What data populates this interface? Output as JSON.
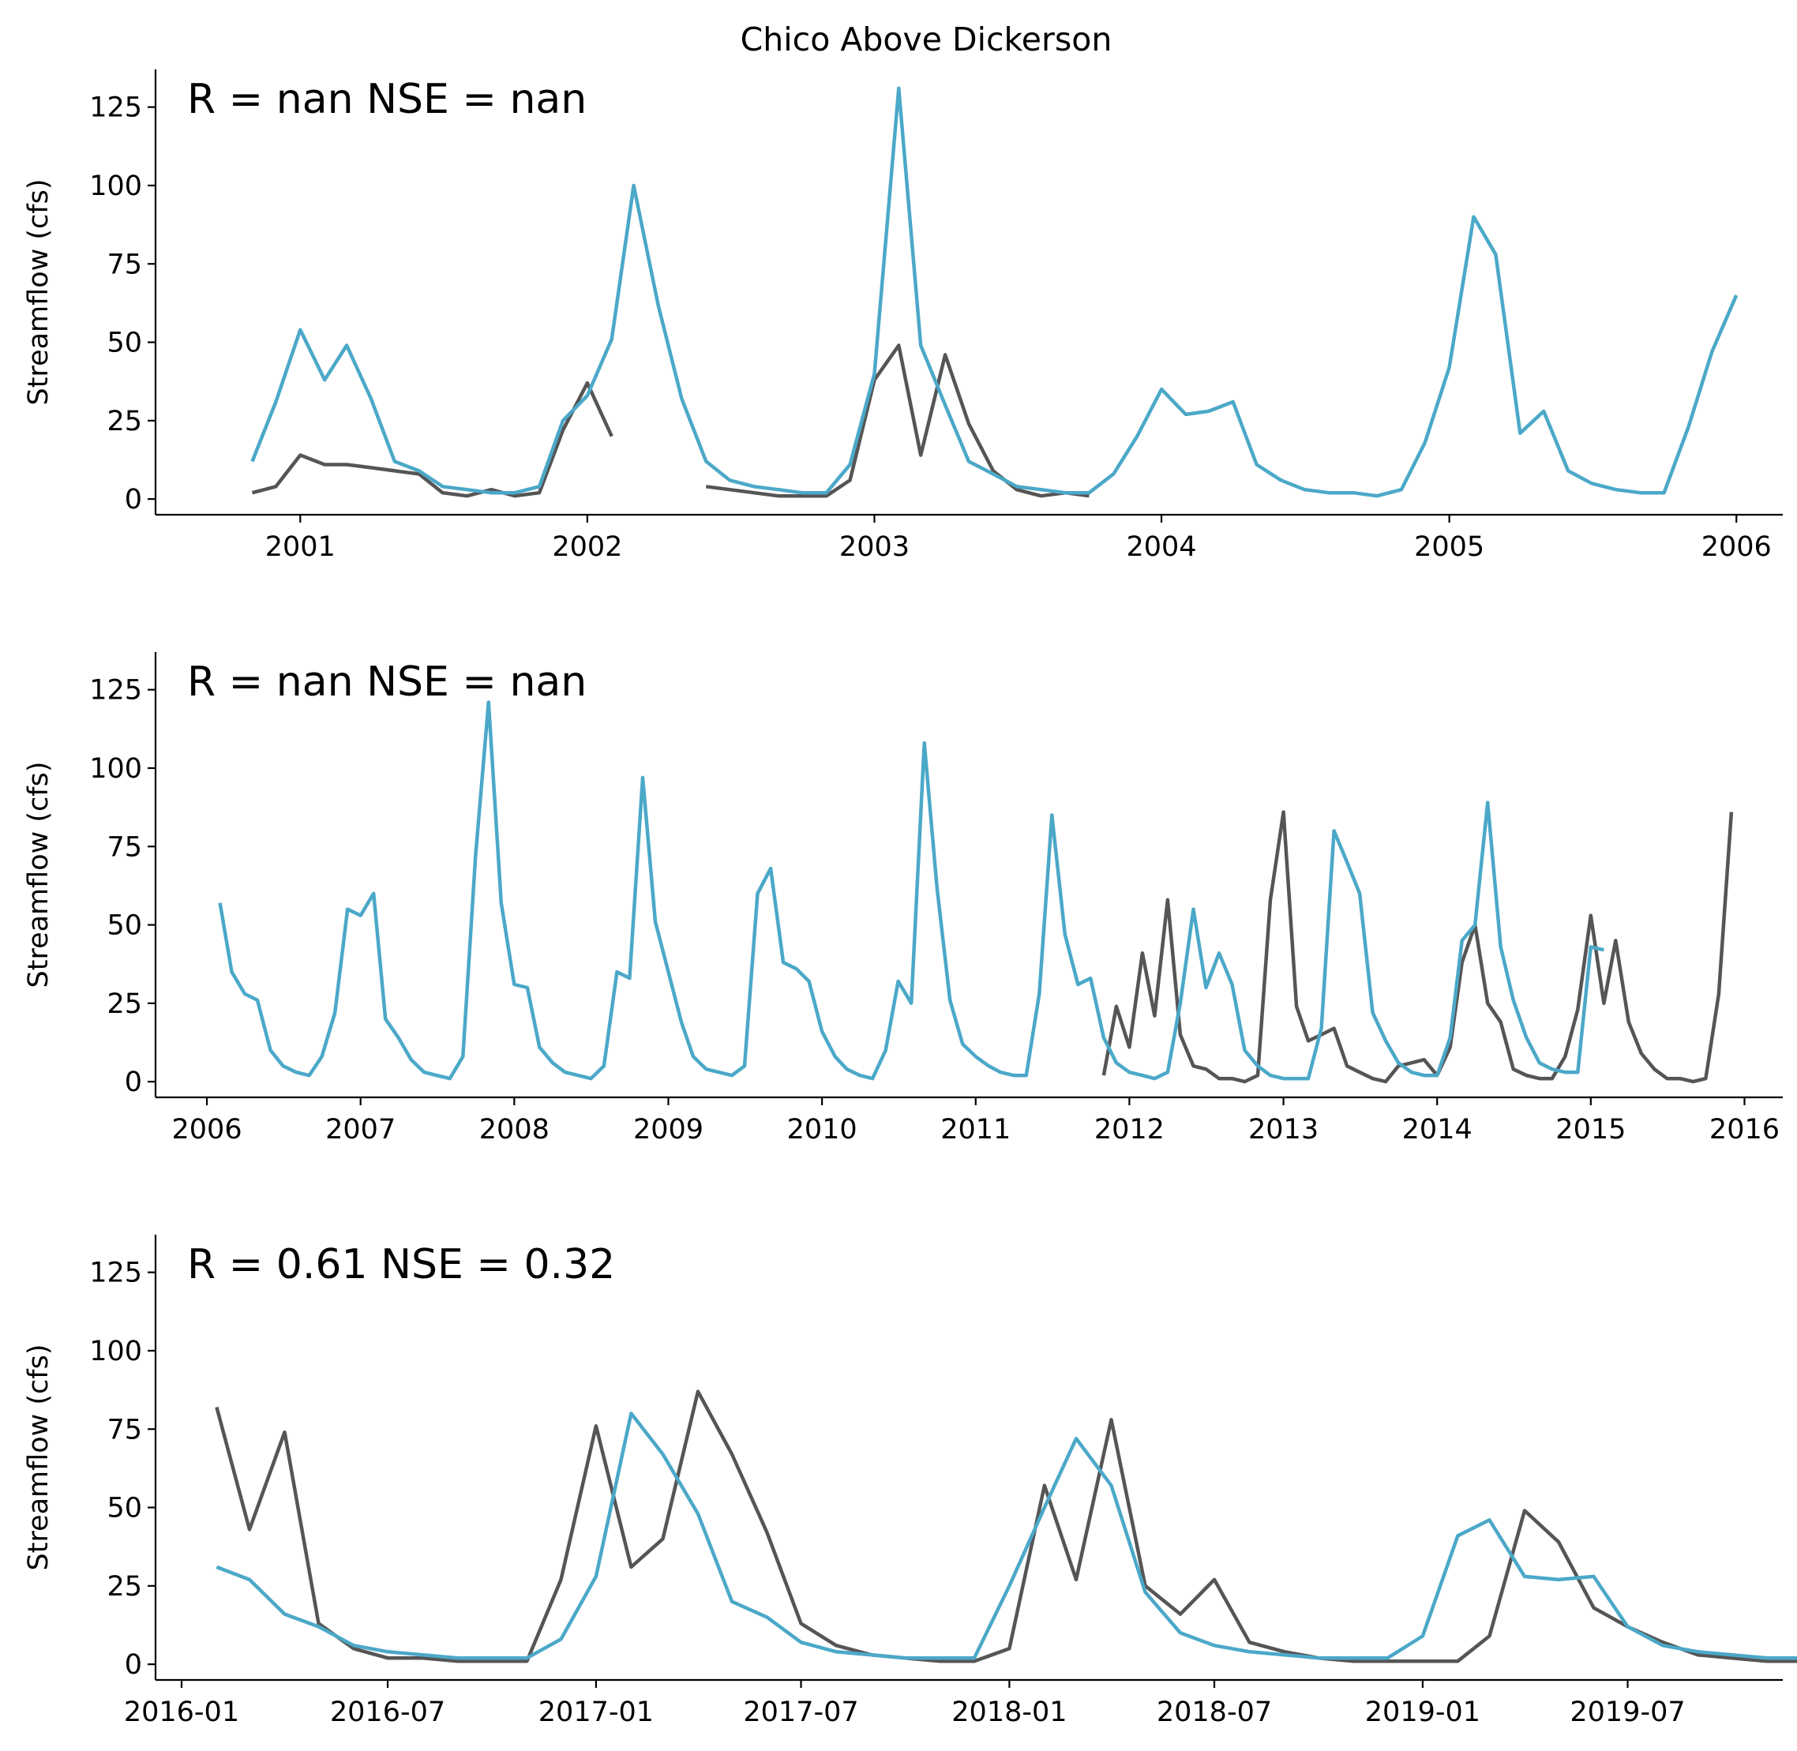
{
  "title": "Chico Above Dickerson",
  "colors": {
    "simulated": "#4ba8c8",
    "observed": "#555555"
  },
  "chart_data": [
    {
      "type": "line",
      "annotation": "R = nan  NSE = nan",
      "ylabel": "Streamflow (cfs)",
      "ylim": [
        -5,
        137
      ],
      "yticks": [
        0,
        25,
        50,
        75,
        100,
        125
      ],
      "xlim": [
        "2000-07-01",
        "2006-03-01"
      ],
      "xticks": [
        {
          "date": "2001-01-01",
          "label": "2001"
        },
        {
          "date": "2002-01-01",
          "label": "2002"
        },
        {
          "date": "2003-01-01",
          "label": "2003"
        },
        {
          "date": "2004-01-01",
          "label": "2004"
        },
        {
          "date": "2005-01-01",
          "label": "2005"
        },
        {
          "date": "2006-01-01",
          "label": "2006"
        }
      ],
      "series": [
        {
          "role": "simulated",
          "start": "2000-11-01",
          "values": [
            12,
            31,
            54,
            38,
            49,
            32,
            12,
            9,
            4,
            3,
            2,
            2,
            4,
            25,
            33,
            51,
            100,
            62,
            32,
            12,
            6,
            4,
            3,
            2,
            2,
            11,
            40,
            131,
            49,
            30,
            12,
            8,
            4,
            3,
            2,
            2,
            8,
            20,
            35,
            27,
            28,
            31,
            11,
            6,
            3,
            2,
            2,
            1,
            3,
            18,
            42,
            90,
            78,
            21,
            28,
            9,
            5,
            3,
            2,
            2,
            23,
            47,
            65
          ]
        },
        {
          "role": "observed",
          "segments": [
            {
              "start": "2000-11-01",
              "values": [
                2,
                4,
                14,
                11,
                11,
                10,
                9,
                8,
                2,
                1,
                3,
                1,
                2,
                22,
                37,
                20
              ]
            },
            {
              "start": "2002-06-01",
              "values": [
                4,
                3,
                2,
                1,
                1,
                1,
                6,
                38,
                49,
                14,
                46,
                24,
                9,
                3,
                1,
                2,
                1
              ]
            }
          ]
        }
      ]
    },
    {
      "type": "line",
      "annotation": "R = nan  NSE = nan",
      "ylabel": "Streamflow (cfs)",
      "ylim": [
        -5,
        137
      ],
      "yticks": [
        0,
        25,
        50,
        75,
        100,
        125
      ],
      "xlim": [
        "2005-09-01",
        "2016-04-01"
      ],
      "xticks": [
        {
          "date": "2006-01-01",
          "label": "2006"
        },
        {
          "date": "2007-01-01",
          "label": "2007"
        },
        {
          "date": "2008-01-01",
          "label": "2008"
        },
        {
          "date": "2009-01-01",
          "label": "2009"
        },
        {
          "date": "2010-01-01",
          "label": "2010"
        },
        {
          "date": "2011-01-01",
          "label": "2011"
        },
        {
          "date": "2012-01-01",
          "label": "2012"
        },
        {
          "date": "2013-01-01",
          "label": "2013"
        },
        {
          "date": "2014-01-01",
          "label": "2014"
        },
        {
          "date": "2015-01-01",
          "label": "2015"
        },
        {
          "date": "2016-01-01",
          "label": "2016"
        }
      ],
      "series": [
        {
          "role": "simulated",
          "start": "2006-02-01",
          "values": [
            57,
            35,
            28,
            26,
            10,
            5,
            3,
            2,
            8,
            22,
            55,
            53,
            60,
            20,
            14,
            7,
            3,
            2,
            1,
            8,
            72,
            121,
            57,
            31,
            30,
            11,
            6,
            3,
            2,
            1,
            5,
            35,
            33,
            97,
            51,
            35,
            19,
            8,
            4,
            3,
            2,
            5,
            60,
            68,
            38,
            36,
            32,
            16,
            8,
            4,
            2,
            1,
            10,
            32,
            25,
            108,
            62,
            26,
            12,
            8,
            5,
            3,
            2,
            2,
            28,
            85,
            47,
            31,
            33,
            14,
            6,
            3,
            2,
            1,
            3,
            25,
            55,
            30,
            41,
            31,
            10,
            5,
            2,
            1,
            1,
            1,
            17,
            80,
            70,
            60,
            22,
            13,
            6,
            3,
            2,
            2,
            14,
            45,
            50,
            89,
            43,
            26,
            14,
            6,
            4,
            3,
            3,
            43,
            42
          ]
        },
        {
          "role": "observed",
          "segments": [
            {
              "start": "2011-11-01",
              "values": [
                2,
                24,
                11,
                41,
                21,
                58,
                15,
                5,
                4,
                1,
                1,
                0,
                2,
                58,
                86,
                24,
                13,
                15,
                17,
                5,
                3,
                1,
                0,
                5,
                6,
                7,
                2,
                11,
                38,
                50,
                25,
                19,
                4,
                2,
                1,
                1,
                8,
                23,
                53,
                25,
                45,
                19,
                9,
                4,
                1,
                1,
                0,
                1,
                28,
                86
              ]
            }
          ]
        }
      ]
    },
    {
      "type": "line",
      "annotation": "R = 0.61  NSE = 0.32",
      "ylabel": "Streamflow (cfs)",
      "ylim": [
        -5,
        137
      ],
      "yticks": [
        0,
        25,
        50,
        75,
        100,
        125
      ],
      "xlim": [
        "2015-12-09",
        "2019-11-15"
      ],
      "xticks": [
        {
          "date": "2016-01-01",
          "label": "2016-01"
        },
        {
          "date": "2016-07-01",
          "label": "2016-07"
        },
        {
          "date": "2017-01-01",
          "label": "2017-01"
        },
        {
          "date": "2017-07-01",
          "label": "2017-07"
        },
        {
          "date": "2018-01-01",
          "label": "2018-01"
        },
        {
          "date": "2018-07-01",
          "label": "2018-07"
        },
        {
          "date": "2019-01-01",
          "label": "2019-01"
        },
        {
          "date": "2019-07-01",
          "label": "2019-07"
        }
      ],
      "series": [
        {
          "role": "simulated",
          "start": "2016-02-01",
          "values": [
            31,
            27,
            16,
            12,
            6,
            4,
            3,
            2,
            2,
            2,
            8,
            28,
            80,
            67,
            48,
            20,
            15,
            7,
            4,
            3,
            2,
            2,
            2,
            25,
            50,
            72,
            57,
            23,
            10,
            6,
            4,
            3,
            2,
            2,
            2,
            9,
            41,
            46,
            28,
            27,
            28,
            12,
            6,
            4,
            3,
            2,
            2
          ]
        },
        {
          "role": "observed",
          "segments": [
            {
              "start": "2016-02-01",
              "values": [
                82,
                43,
                74,
                13,
                5,
                2,
                2,
                1,
                1,
                1,
                27,
                76,
                31,
                40,
                87,
                67,
                42,
                13,
                6,
                3,
                2,
                1,
                1,
                5,
                57,
                27,
                78,
                25,
                16,
                27,
                7,
                4,
                2,
                1,
                1,
                1,
                1,
                9,
                49,
                39,
                18,
                12,
                7,
                3,
                2,
                1,
                1
              ]
            }
          ]
        }
      ]
    }
  ]
}
